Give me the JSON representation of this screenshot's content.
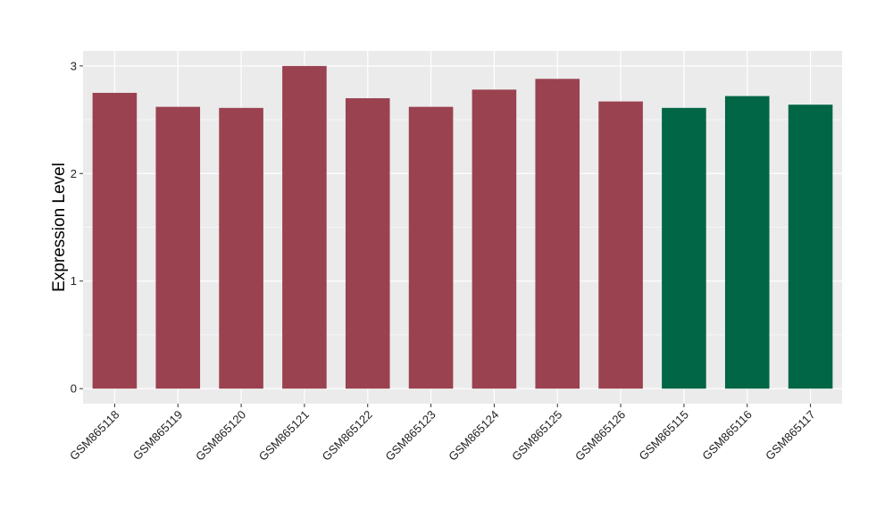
{
  "chart_data": {
    "type": "bar",
    "title": "",
    "xlabel": "",
    "ylabel": "Expression Level",
    "categories": [
      "GSM865118",
      "GSM865119",
      "GSM865120",
      "GSM865121",
      "GSM865122",
      "GSM865123",
      "GSM865124",
      "GSM865125",
      "GSM865126",
      "GSM865115",
      "GSM865116",
      "GSM865117"
    ],
    "values": [
      2.75,
      2.62,
      2.61,
      3.0,
      2.7,
      2.62,
      2.78,
      2.88,
      2.67,
      2.61,
      2.72,
      2.64
    ],
    "bar_colors": [
      "#9a4250",
      "#9a4250",
      "#9a4250",
      "#9a4250",
      "#9a4250",
      "#9a4250",
      "#9a4250",
      "#9a4250",
      "#9a4250",
      "#006645",
      "#006645",
      "#006645"
    ],
    "ylim": [
      -0.14,
      3.14
    ],
    "yticks": [
      0,
      1,
      2,
      3
    ],
    "yticklabels": [
      "0",
      "1",
      "2",
      "3"
    ],
    "grid": true,
    "legend": "none",
    "panel_background": "#ebebeb",
    "grid_color": "#ffffff"
  }
}
